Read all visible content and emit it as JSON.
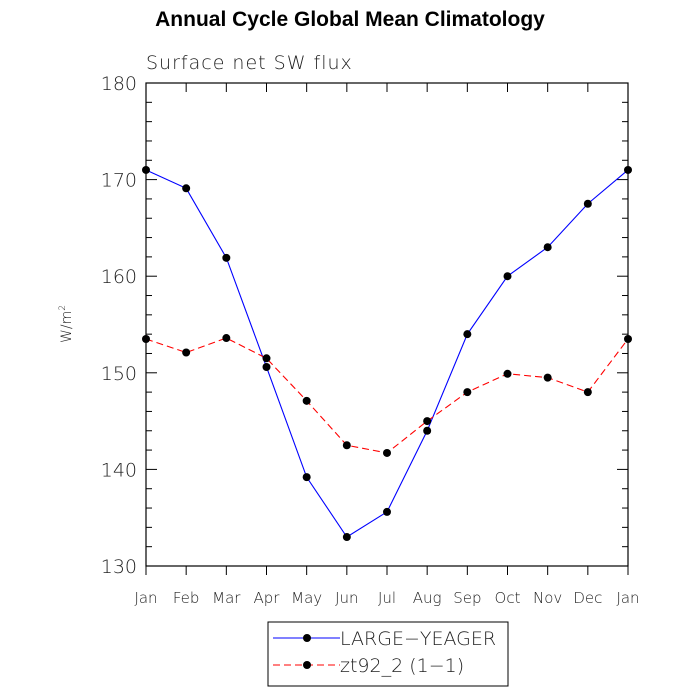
{
  "title": "Annual Cycle Global Mean Climatology",
  "chart_data": {
    "type": "line",
    "title": "Annual Cycle Global Mean Climatology",
    "subtitle": "Surface net SW flux",
    "ylabel": "W/m",
    "ylabel_sup": "2",
    "xlabel": "",
    "categories": [
      "Jan",
      "Feb",
      "Mar",
      "Apr",
      "May",
      "Jun",
      "Jul",
      "Aug",
      "Sep",
      "Oct",
      "Nov",
      "Dec",
      "Jan"
    ],
    "yticks": [
      "130",
      "140",
      "150",
      "160",
      "170",
      "180"
    ],
    "ylim": [
      130,
      180
    ],
    "grid": false,
    "legend_position": "bottom-center",
    "series": [
      {
        "name": "LARGE−YEAGER",
        "color": "#0000ff",
        "dash": "solid",
        "values": [
          171.0,
          169.1,
          161.9,
          150.6,
          139.2,
          133.0,
          135.6,
          144.0,
          154.0,
          160.0,
          163.0,
          167.5,
          171.0
        ]
      },
      {
        "name": "zt92_2 (1−1)",
        "color": "#ff0000",
        "dash": "dashed",
        "values": [
          153.5,
          152.1,
          153.6,
          151.5,
          147.1,
          142.5,
          141.7,
          145.0,
          148.0,
          149.9,
          149.5,
          148.0,
          153.5
        ]
      }
    ]
  }
}
